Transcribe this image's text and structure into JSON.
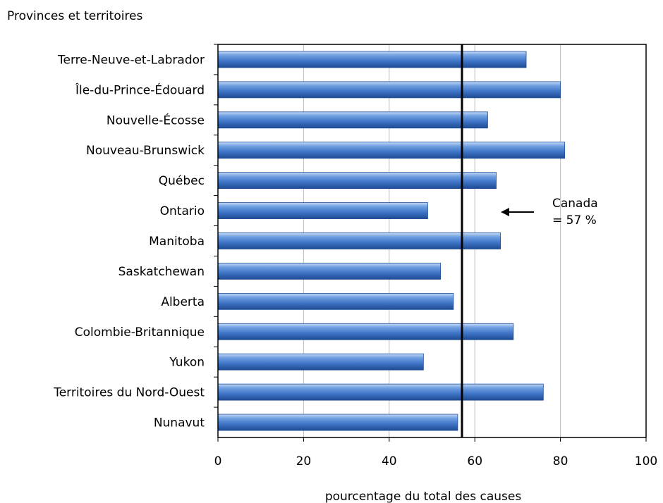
{
  "chart_data": {
    "type": "bar",
    "orientation": "horizontal",
    "title": "Provinces et territoires",
    "xlabel": "pourcentage du total des causes",
    "ylabel": "",
    "xlim": [
      0,
      100
    ],
    "x_ticks": [
      0,
      20,
      40,
      60,
      80,
      100
    ],
    "grid": "vertical",
    "categories": [
      "Terre-Neuve-et-Labrador",
      "Île-du-Prince-Édouard",
      "Nouvelle-Écosse",
      "Nouveau-Brunswick",
      "Québec",
      "Ontario",
      "Manitoba",
      "Saskatchewan",
      "Alberta",
      "Colombie-Britannique",
      "Yukon",
      "Territoires du Nord-Ouest",
      "Nunavut"
    ],
    "values": [
      72,
      80,
      63,
      81,
      65,
      49,
      66,
      52,
      55,
      69,
      48,
      76,
      56
    ],
    "reference_line": {
      "value": 57
    },
    "annotation": {
      "line1": "Canada",
      "line2": "= 57 %"
    },
    "colors": {
      "bar": "#4a7fd0",
      "bar_dark": "#1f4f9a",
      "bar_light": "#a9c6f0"
    }
  }
}
